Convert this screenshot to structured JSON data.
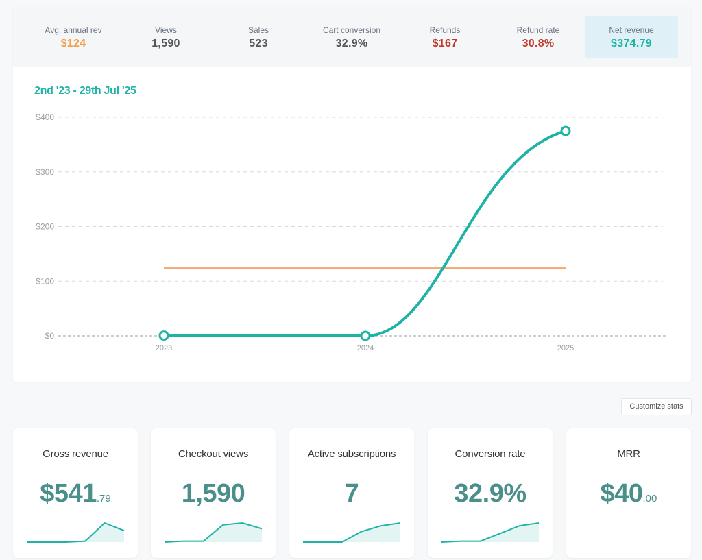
{
  "summary": {
    "metrics": [
      {
        "key": "avg-annual-rev",
        "label": "Avg. annual rev",
        "value": "$124",
        "color": "#f0a04b"
      },
      {
        "key": "views",
        "label": "Views",
        "value": "1,590",
        "color": "#555555"
      },
      {
        "key": "sales",
        "label": "Sales",
        "value": "523",
        "color": "#555555"
      },
      {
        "key": "cart-conversion",
        "label": "Cart conversion",
        "value": "32.9%",
        "color": "#555555"
      },
      {
        "key": "refunds",
        "label": "Refunds",
        "value": "$167",
        "color": "#c0392b"
      },
      {
        "key": "refund-rate",
        "label": "Refund rate",
        "value": "30.8%",
        "color": "#c0392b"
      },
      {
        "key": "net-revenue",
        "label": "Net revenue",
        "value": "$374.79",
        "color": "#1fb3a6",
        "active": true
      }
    ]
  },
  "chart": {
    "date_range": "2nd '23 - 29th Jul '25",
    "accent": "#1fb3a6",
    "average_color": "#f5a76b"
  },
  "chart_data": {
    "type": "line",
    "x": [
      "2023",
      "2024",
      "2025"
    ],
    "series": [
      {
        "values": [
          0.5,
          0,
          374.79
        ]
      }
    ],
    "average_line": 124,
    "y_ticks": [
      "$0",
      "$100",
      "$200",
      "$300",
      "$400"
    ],
    "ylim": [
      0,
      400
    ],
    "grid": true
  },
  "customize": {
    "label": "Customize stats"
  },
  "stats": [
    {
      "key": "gross-revenue",
      "title": "Gross revenue",
      "value": "$541",
      "cents": ".79",
      "spark": [
        0,
        0,
        0,
        0.05,
        1,
        0.6
      ]
    },
    {
      "key": "checkout-views",
      "title": "Checkout views",
      "value": "1,590",
      "cents": "",
      "spark": [
        0,
        0.05,
        0.05,
        0.9,
        1,
        0.7
      ]
    },
    {
      "key": "active-subscriptions",
      "title": "Active subscriptions",
      "value": "7",
      "cents": "",
      "spark": [
        0,
        0,
        0,
        0.55,
        0.85,
        1
      ]
    },
    {
      "key": "conversion-rate",
      "title": "Conversion rate",
      "value": "32.9%",
      "cents": "",
      "spark": [
        0,
        0.05,
        0.05,
        0.45,
        0.85,
        1
      ]
    },
    {
      "key": "mrr",
      "title": "MRR",
      "value": "$40",
      "cents": ".00",
      "spark": null
    }
  ]
}
